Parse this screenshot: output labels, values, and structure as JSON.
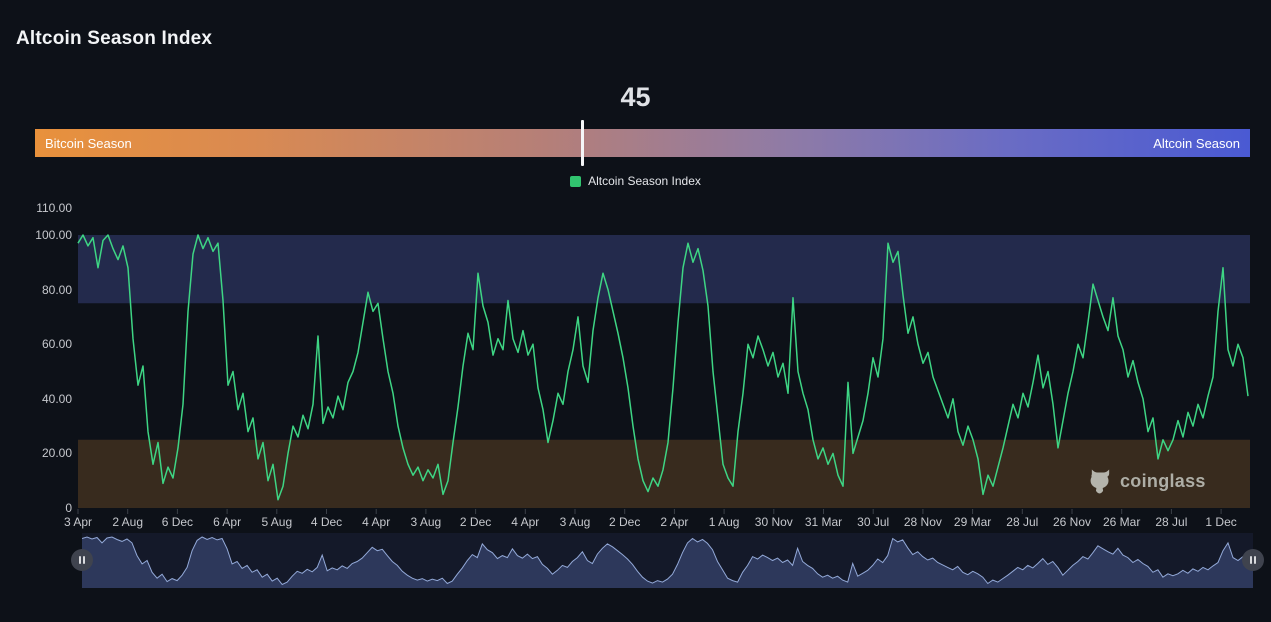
{
  "page": {
    "title": "Altcoin Season Index"
  },
  "gauge": {
    "value": "45",
    "marker_percent": 45,
    "left_label": "Bitcoin Season",
    "right_label": "Altcoin Season"
  },
  "legend": {
    "label": "Altcoin Season Index",
    "marker_color": "#31c46f"
  },
  "watermark": {
    "text": "coinglass"
  },
  "chart_data": {
    "type": "line",
    "title": "Altcoin Season Index",
    "ylim": [
      0,
      110
    ],
    "y_ticks": [
      110,
      100,
      80,
      60,
      40,
      20,
      0
    ],
    "y_tick_labels": [
      "110.00",
      "100.00",
      "80.00",
      "60.00",
      "40.00",
      "20.00",
      "0"
    ],
    "x_tick_labels": [
      "3 Apr",
      "2 Aug",
      "6 Dec",
      "6 Apr",
      "5 Aug",
      "4 Dec",
      "4 Apr",
      "3 Aug",
      "2 Dec",
      "4 Apr",
      "3 Aug",
      "2 Dec",
      "2 Apr",
      "1 Aug",
      "30 Nov",
      "31 Mar",
      "30 Jul",
      "28 Nov",
      "29 Mar",
      "28 Jul",
      "26 Nov",
      "26 Mar",
      "28 Jul",
      "1 Dec"
    ],
    "grid": false,
    "legend_position": "top-center",
    "bands": [
      {
        "name": "altcoin-season-zone",
        "from": 75,
        "to": 100,
        "color": "#232a4c"
      },
      {
        "name": "bitcoin-season-zone",
        "from": 0,
        "to": 25,
        "color": "#382b1e"
      }
    ],
    "series": [
      {
        "name": "Altcoin Season Index",
        "color": "#3ed584",
        "values": [
          97,
          100,
          96,
          99,
          88,
          98,
          100,
          95,
          91,
          96,
          88,
          62,
          45,
          52,
          28,
          16,
          24,
          9,
          15,
          11,
          22,
          38,
          72,
          93,
          100,
          95,
          99,
          94,
          97,
          76,
          45,
          50,
          36,
          42,
          28,
          33,
          18,
          24,
          10,
          16,
          3,
          8,
          20,
          30,
          26,
          34,
          29,
          38,
          63,
          31,
          37,
          33,
          41,
          36,
          46,
          50,
          57,
          68,
          79,
          72,
          75,
          62,
          50,
          42,
          30,
          22,
          16,
          12,
          15,
          10,
          14,
          11,
          16,
          5,
          10,
          24,
          37,
          52,
          64,
          58,
          86,
          74,
          68,
          56,
          62,
          58,
          76,
          62,
          57,
          65,
          56,
          60,
          44,
          36,
          24,
          32,
          42,
          38,
          50,
          58,
          70,
          52,
          46,
          65,
          77,
          86,
          80,
          72,
          64,
          55,
          44,
          30,
          18,
          10,
          6,
          11,
          8,
          14,
          24,
          44,
          68,
          88,
          97,
          90,
          95,
          87,
          74,
          50,
          33,
          16,
          11,
          8,
          28,
          42,
          60,
          55,
          63,
          58,
          52,
          57,
          48,
          53,
          42,
          77,
          50,
          42,
          36,
          25,
          18,
          22,
          16,
          20,
          12,
          8,
          46,
          20,
          26,
          32,
          42,
          55,
          48,
          62,
          97,
          90,
          94,
          78,
          64,
          70,
          60,
          53,
          57,
          48,
          43,
          38,
          33,
          40,
          28,
          23,
          30,
          25,
          18,
          5,
          12,
          8,
          15,
          22,
          30,
          38,
          33,
          42,
          37,
          46,
          56,
          44,
          50,
          38,
          22,
          32,
          42,
          50,
          60,
          55,
          68,
          82,
          76,
          70,
          65,
          77,
          63,
          58,
          48,
          54,
          46,
          40,
          28,
          33,
          18,
          25,
          21,
          25,
          32,
          26,
          35,
          30,
          38,
          33,
          41,
          48,
          72,
          88,
          58,
          52,
          60,
          55,
          41
        ]
      }
    ]
  },
  "navigator": {
    "fill": "#2e3a5e",
    "stroke": "#93a9d8"
  }
}
